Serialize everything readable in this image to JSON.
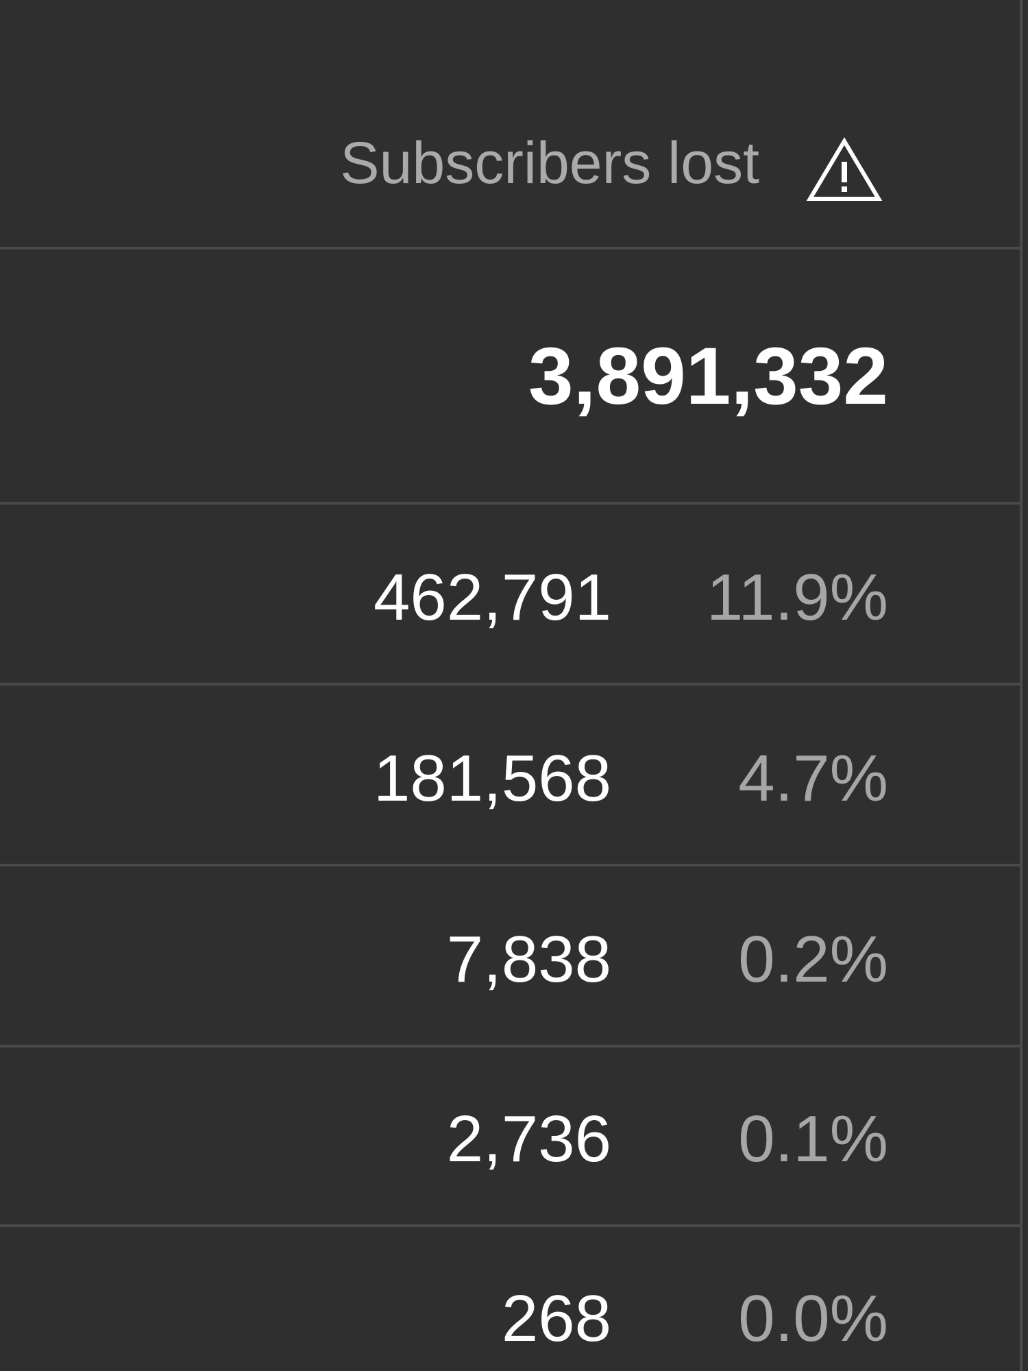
{
  "table": {
    "column_header": "Subscribers lost",
    "header_icon": "warning-icon",
    "total": "3,891,332",
    "rows": [
      {
        "value": "462,791",
        "percent": "11.9%"
      },
      {
        "value": "181,568",
        "percent": "4.7%"
      },
      {
        "value": "7,838",
        "percent": "0.2%"
      },
      {
        "value": "2,736",
        "percent": "0.1%"
      },
      {
        "value": "268",
        "percent": "0.0%"
      }
    ]
  },
  "colors": {
    "background": "#2f2f2f",
    "divider": "#4a4a4a",
    "header_text": "#aaaaaa",
    "value_text": "#ffffff",
    "percent_text": "#a6a6a6"
  }
}
